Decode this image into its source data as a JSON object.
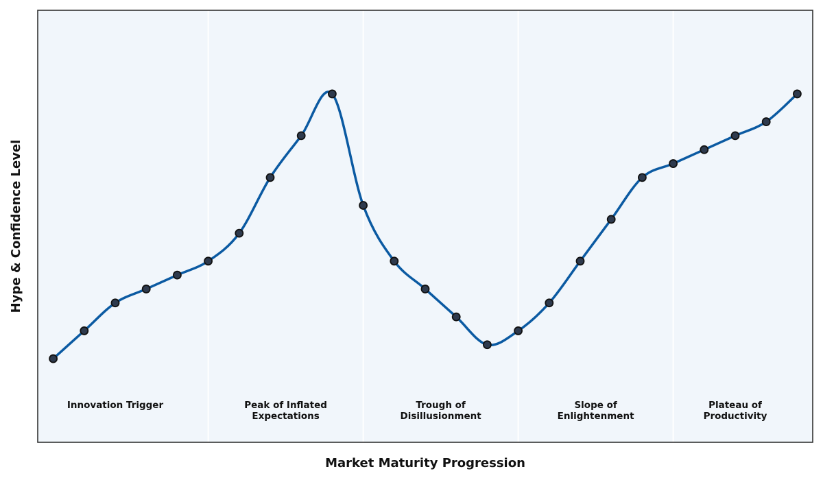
{
  "chart_data": {
    "type": "line",
    "title": "",
    "xlabel": "Market Maturity Progression",
    "ylabel": "Hype & Confidence Level",
    "x": [
      0,
      1,
      2,
      3,
      4,
      5,
      6,
      7,
      8,
      9,
      10,
      11,
      12,
      13,
      14,
      15,
      16,
      17,
      18,
      19,
      20,
      21,
      22,
      23,
      24
    ],
    "series": [
      {
        "values": [
          10,
          20,
          30,
          35,
          40,
          45,
          55,
          75,
          90,
          105,
          65,
          45,
          35,
          25,
          15,
          20,
          30,
          45,
          60,
          75,
          80,
          85,
          90,
          95,
          105
        ]
      }
    ],
    "xlim": [
      -0.5,
      24.5
    ],
    "ylim": [
      -20,
      135
    ],
    "grid": "vertical phase separators",
    "phases": [
      {
        "label": "Innovation Trigger",
        "start": -0.5,
        "end": 5
      },
      {
        "label": "Peak of Inflated\nExpectations",
        "start": 5,
        "end": 10
      },
      {
        "label": "Trough of\nDisillusionment",
        "start": 10,
        "end": 15
      },
      {
        "label": "Slope of\nEnlightenment",
        "start": 15,
        "end": 20
      },
      {
        "label": "Plateau of\nProductivity",
        "start": 20,
        "end": 24.5
      }
    ],
    "colors": {
      "line": "#0b5aa2",
      "marker_fill": "#2e3a4d",
      "marker_edge": "#111111",
      "background": "#f1f6fb",
      "separator": "#ffffff",
      "frame": "#333333"
    }
  }
}
